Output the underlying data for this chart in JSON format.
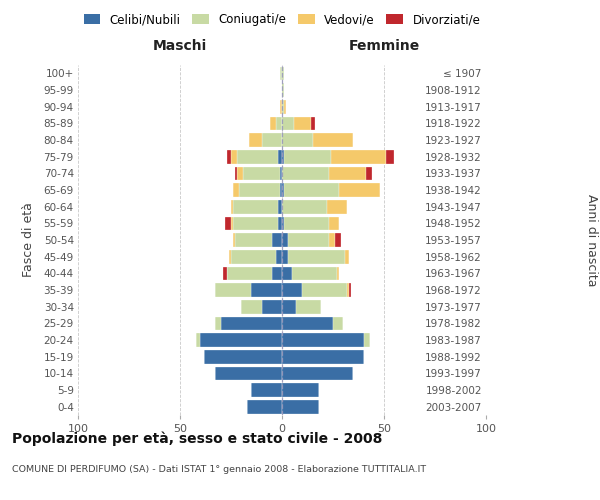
{
  "age_groups": [
    "0-4",
    "5-9",
    "10-14",
    "15-19",
    "20-24",
    "25-29",
    "30-34",
    "35-39",
    "40-44",
    "45-49",
    "50-54",
    "55-59",
    "60-64",
    "65-69",
    "70-74",
    "75-79",
    "80-84",
    "85-89",
    "90-94",
    "95-99",
    "100+"
  ],
  "birth_years": [
    "2003-2007",
    "1998-2002",
    "1993-1997",
    "1988-1992",
    "1983-1987",
    "1978-1982",
    "1973-1977",
    "1968-1972",
    "1963-1967",
    "1958-1962",
    "1953-1957",
    "1948-1952",
    "1943-1947",
    "1938-1942",
    "1933-1937",
    "1928-1932",
    "1923-1927",
    "1918-1922",
    "1913-1917",
    "1908-1912",
    "≤ 1907"
  ],
  "male": {
    "celibi": [
      17,
      15,
      33,
      38,
      40,
      30,
      10,
      15,
      5,
      3,
      5,
      2,
      2,
      1,
      1,
      2,
      0,
      0,
      0,
      0,
      0
    ],
    "coniugati": [
      0,
      0,
      0,
      0,
      2,
      3,
      10,
      18,
      22,
      22,
      18,
      22,
      22,
      20,
      18,
      20,
      10,
      3,
      0,
      0,
      1
    ],
    "vedovi": [
      0,
      0,
      0,
      0,
      0,
      0,
      0,
      0,
      0,
      1,
      1,
      1,
      1,
      3,
      3,
      3,
      6,
      3,
      1,
      0,
      0
    ],
    "divorziati": [
      0,
      0,
      0,
      0,
      0,
      0,
      0,
      0,
      2,
      0,
      0,
      3,
      0,
      0,
      1,
      2,
      0,
      0,
      0,
      0,
      0
    ]
  },
  "female": {
    "nubili": [
      18,
      18,
      35,
      40,
      40,
      25,
      7,
      10,
      5,
      3,
      3,
      1,
      0,
      1,
      0,
      1,
      0,
      0,
      0,
      0,
      0
    ],
    "coniugate": [
      0,
      0,
      0,
      0,
      3,
      5,
      12,
      22,
      22,
      28,
      20,
      22,
      22,
      27,
      23,
      23,
      15,
      6,
      1,
      1,
      1
    ],
    "vedove": [
      0,
      0,
      0,
      0,
      0,
      0,
      0,
      1,
      1,
      2,
      3,
      5,
      10,
      20,
      18,
      27,
      20,
      8,
      1,
      0,
      0
    ],
    "divorziate": [
      0,
      0,
      0,
      0,
      0,
      0,
      0,
      1,
      0,
      0,
      3,
      0,
      0,
      0,
      3,
      4,
      0,
      2,
      0,
      0,
      0
    ]
  },
  "colors": {
    "celibi": "#3a6ea5",
    "coniugati": "#c8daa4",
    "vedovi": "#f5c96a",
    "divorziati": "#c0272d"
  },
  "xlim": 100,
  "title": "Popolazione per età, sesso e stato civile - 2008",
  "subtitle": "COMUNE DI PERDIFUMO (SA) - Dati ISTAT 1° gennaio 2008 - Elaborazione TUTTITALIA.IT",
  "ylabel_left": "Fasce di età",
  "ylabel_right": "Anni di nascita",
  "xlabel_maschi": "Maschi",
  "xlabel_femmine": "Femmine",
  "legend_labels": [
    "Celibi/Nubili",
    "Coniugati/e",
    "Vedovi/e",
    "Divorziati/e"
  ],
  "background_color": "#ffffff",
  "grid_color": "#bbbbbb"
}
